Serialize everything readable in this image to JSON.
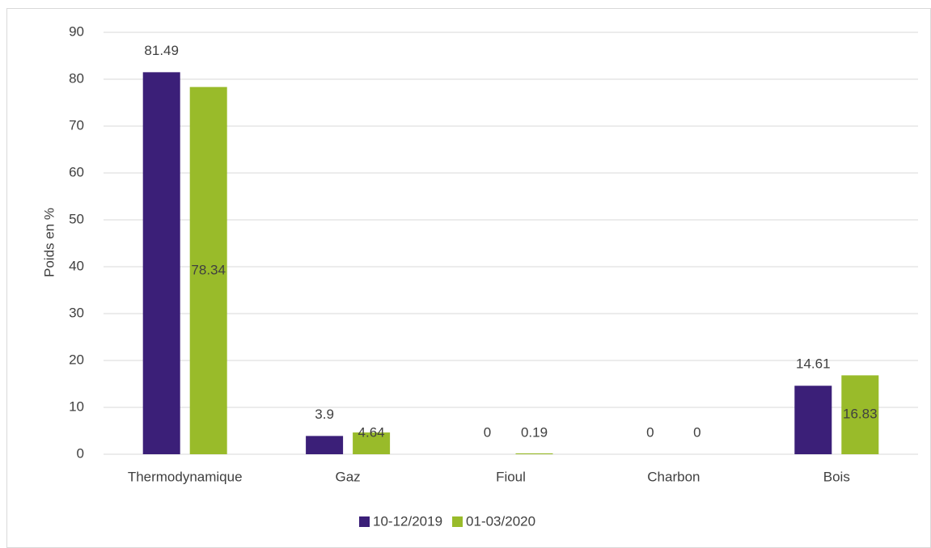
{
  "chart_data": {
    "type": "bar",
    "y_axis_label": "Poids en %",
    "categories": [
      "Thermodynamique",
      "Gaz",
      "Fioul",
      "Charbon",
      "Bois"
    ],
    "series": [
      {
        "name": "10-12/2019",
        "color": "#3b1f78",
        "values": [
          81.49,
          3.9,
          0,
          0,
          14.61
        ]
      },
      {
        "name": "01-03/2020",
        "color": "#99bb2a",
        "values": [
          78.34,
          4.64,
          0.19,
          0,
          16.83
        ]
      }
    ],
    "ylim": [
      0,
      90
    ],
    "yticks": [
      0,
      10,
      20,
      30,
      40,
      50,
      60,
      70,
      80,
      90
    ],
    "grid": true,
    "legend": "bottom"
  }
}
